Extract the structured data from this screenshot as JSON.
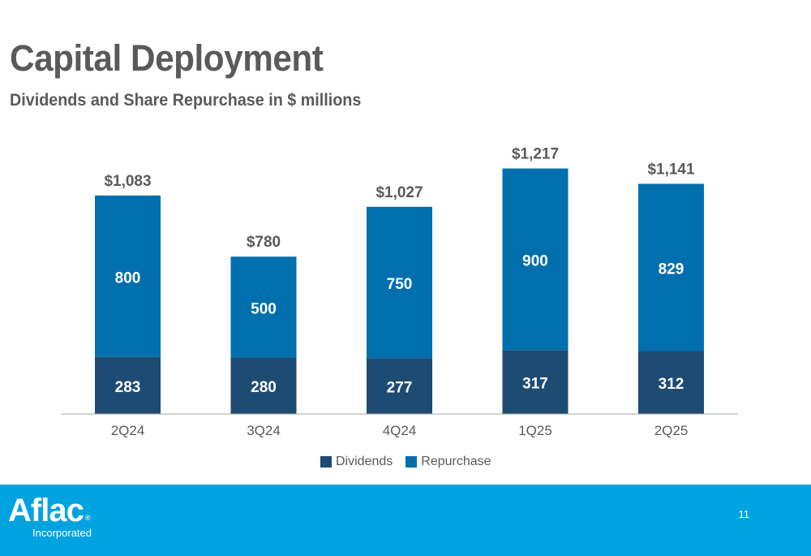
{
  "page": {
    "title": "Capital Deployment",
    "subtitle": "Dividends and Share Repurchase in $ millions",
    "page_number": "11"
  },
  "brand": {
    "logo_text": "Aflac",
    "logo_reg": "®",
    "logo_sub": "Incorporated",
    "footer_color": "#00a3e0"
  },
  "chart_data": {
    "type": "bar",
    "stacked": true,
    "categories": [
      "2Q24",
      "3Q24",
      "4Q24",
      "1Q25",
      "2Q25"
    ],
    "series": [
      {
        "name": "Dividends",
        "values": [
          283,
          280,
          277,
          317,
          312
        ],
        "color": "#1e4b72"
      },
      {
        "name": "Repurchase",
        "values": [
          800,
          500,
          750,
          900,
          829
        ],
        "color": "#006fae"
      }
    ],
    "segment_labels": [
      [
        "283",
        "280",
        "277",
        "317",
        "312"
      ],
      [
        "800",
        "500",
        "750",
        "900",
        "829"
      ]
    ],
    "total_labels": [
      "$1,083",
      "$780",
      "$1,027",
      "$1,217",
      "$1,141"
    ],
    "legend_position": "bottom",
    "grid": false,
    "ylim": [
      0,
      1400
    ]
  }
}
